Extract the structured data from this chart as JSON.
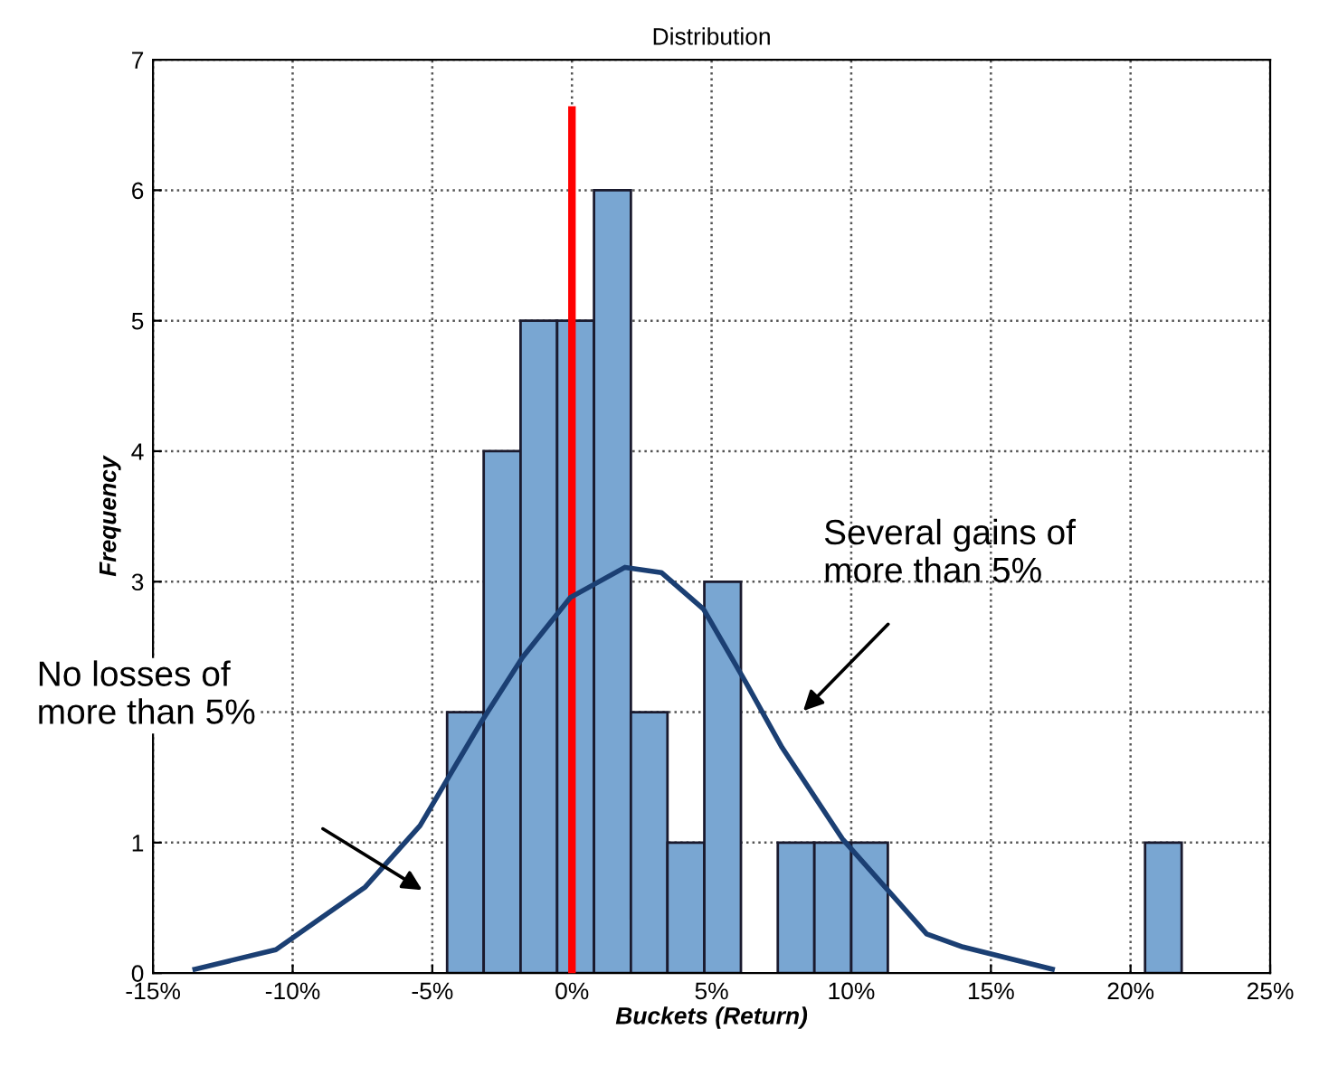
{
  "chart_data": {
    "type": "histogram",
    "title": "Distribution",
    "xlabel": "Buckets (Return)",
    "ylabel": "Frequency",
    "bins": [
      -4.47,
      -3.16,
      -1.84,
      -0.53,
      0.79,
      2.11,
      3.42,
      4.74,
      6.05,
      7.37,
      8.68,
      10.0,
      11.31,
      12.63,
      13.94,
      15.26,
      16.57,
      17.89,
      19.2,
      20.52,
      21.83
    ],
    "values": [
      2,
      4,
      5,
      5,
      6,
      2,
      1,
      3,
      0,
      1,
      1,
      1,
      0,
      0,
      0,
      0,
      0,
      0,
      0,
      1
    ],
    "color": "#79a6d2",
    "series": [
      {
        "type": "line",
        "color": "#1b3f73",
        "x": [
          -13.5,
          -10.6,
          -7.4,
          -5.44,
          -3.29,
          -1.77,
          -0.05,
          1.9,
          3.2,
          4.71,
          6.22,
          7.52,
          9.68,
          12.7,
          14.0,
          17.2
        ],
        "values": [
          0.03,
          0.18,
          0.66,
          1.13,
          1.91,
          2.42,
          2.88,
          3.11,
          3.07,
          2.79,
          2.23,
          1.73,
          1.03,
          0.3,
          0.2,
          0.03
        ]
      }
    ],
    "ref_lines": [
      {
        "axis": "x",
        "value": 0,
        "color": "#ff0000"
      }
    ],
    "annotations": [
      "Several gains of\nmore than 5%",
      "No losses of\nmore than 5%"
    ],
    "xlim": [
      -15,
      25
    ],
    "xticks": [
      {
        "value": -15,
        "label": "-15%"
      },
      {
        "value": -10,
        "label": "-10%"
      },
      {
        "value": -5,
        "label": "-5%"
      },
      {
        "value": 0,
        "label": "0%"
      },
      {
        "value": 5,
        "label": "5%"
      },
      {
        "value": 10,
        "label": "10%"
      },
      {
        "value": 15,
        "label": "15%"
      },
      {
        "value": 20,
        "label": "20%"
      },
      {
        "value": 25,
        "label": "25%"
      }
    ],
    "ylim": [
      0,
      7
    ],
    "yticks": [
      0,
      1,
      {
        "value": 2,
        "label": null
      },
      3,
      4,
      5,
      6,
      7
    ],
    "grid": true
  }
}
